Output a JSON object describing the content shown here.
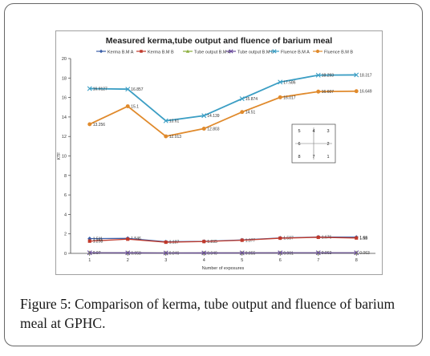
{
  "caption": {
    "label": "Figure 5:",
    "text": " Comparison of kerma, tube output and fluence of barium meal at GPHC."
  },
  "colors": {
    "kerma_a": "#3b5fa8",
    "kerma_b": "#c0392b",
    "tube_a": "#8aae3c",
    "tube_b": "#6a4c9c",
    "fluence_a": "#3b9ec4",
    "fluence_b": "#e08a2c"
  },
  "chart_data": {
    "type": "line",
    "title": "Measured kerma,tube output and fluence of barium meal",
    "xlabel": "Number of exposures",
    "ylabel": "KTF",
    "x": [
      1,
      2,
      3,
      4,
      5,
      6,
      7,
      8
    ],
    "ylim": [
      0,
      20
    ],
    "yticks": [
      0,
      2,
      4,
      6,
      8,
      10,
      12,
      14,
      16,
      18,
      20
    ],
    "legend_position": "top",
    "grid": false,
    "series": [
      {
        "name": "Kerma B.M A",
        "color": "#3b5fa8",
        "marker": "diamond",
        "values": [
          1.511,
          1.546,
          1.187,
          1.235,
          1.377,
          1.587,
          1.676,
          1.66
        ],
        "labels": [
          "1.511",
          "1.546",
          "1.187",
          "1.235",
          "1.377",
          "1.587",
          "1.676",
          "1.66"
        ]
      },
      {
        "name": "Kerma B.M B",
        "color": "#c0392b",
        "marker": "square",
        "values": [
          1.258,
          1.46,
          1.147,
          1.215,
          1.35,
          1.56,
          1.65,
          1.58
        ],
        "labels": [
          "1.258",
          "",
          "",
          "",
          "",
          "",
          "",
          "1.58"
        ]
      },
      {
        "name": "Tube output B.M A",
        "color": "#8aae3c",
        "marker": "triangle",
        "values": [
          0.07,
          0.058,
          0.046,
          0.049,
          0.055,
          0.061,
          0.063,
          0.063
        ],
        "labels": [
          "0.07",
          "0.058",
          "0.046",
          "0.049",
          "0.055",
          "0.061",
          "0.063",
          "0.063"
        ]
      },
      {
        "name": "Tube output B.M B",
        "color": "#6a4c9c",
        "marker": "x",
        "values": [
          0.065,
          0.055,
          0.044,
          0.047,
          0.053,
          0.059,
          0.061,
          0.06
        ],
        "labels": [
          "",
          "",
          "",
          "",
          "",
          "",
          "",
          ""
        ]
      },
      {
        "name": "Fluence B.M A",
        "color": "#3b9ec4",
        "marker": "x",
        "values": [
          16.9127,
          16.857,
          13.61,
          14.139,
          15.874,
          17.586,
          18.293,
          18.317
        ],
        "labels": [
          "16.9127",
          "16.857",
          "13.61",
          "14.139",
          "15.874",
          "17.586",
          "18.293",
          "18.317"
        ]
      },
      {
        "name": "Fluence B.M B",
        "color": "#e08a2c",
        "marker": "circle",
        "values": [
          13.256,
          15.1,
          12.013,
          12.803,
          14.51,
          16.017,
          16.607,
          16.649
        ],
        "labels": [
          "13.256",
          "15.1",
          "12.013",
          "12.803",
          "14.51",
          "16.017",
          "16.607",
          "16.649"
        ]
      }
    ],
    "inset_table": {
      "rows": [
        [
          "5",
          "4",
          "3"
        ],
        [
          "6",
          "",
          "2"
        ],
        [
          "8",
          "7",
          "1"
        ]
      ]
    }
  }
}
